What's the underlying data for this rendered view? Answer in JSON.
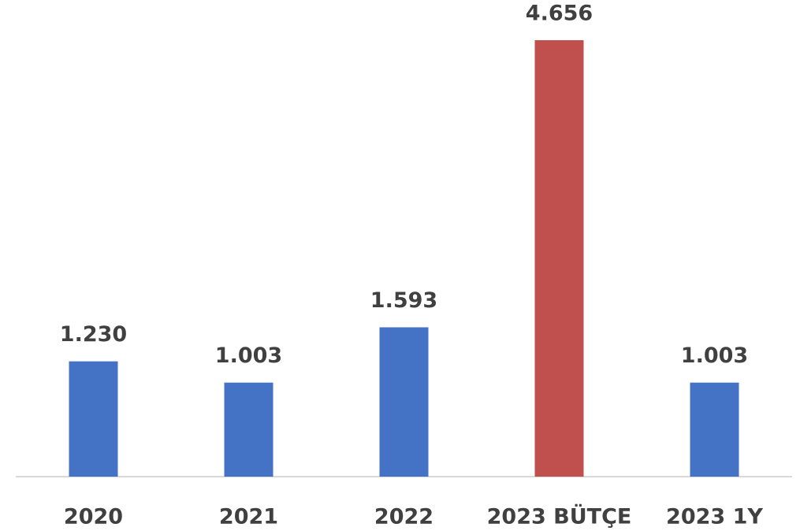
{
  "chart_data": {
    "type": "bar",
    "categories": [
      "2020",
      "2021",
      "2022",
      "2023 BÜTÇE",
      "2023 1Y"
    ],
    "values": [
      1230,
      1003,
      1593,
      4656,
      1003
    ],
    "value_labels": [
      "1.230",
      "1.003",
      "1.593",
      "4.656",
      "1.003"
    ],
    "colors": [
      "#4472c4",
      "#4472c4",
      "#4472c4",
      "#c0504d",
      "#4472c4"
    ]
  }
}
